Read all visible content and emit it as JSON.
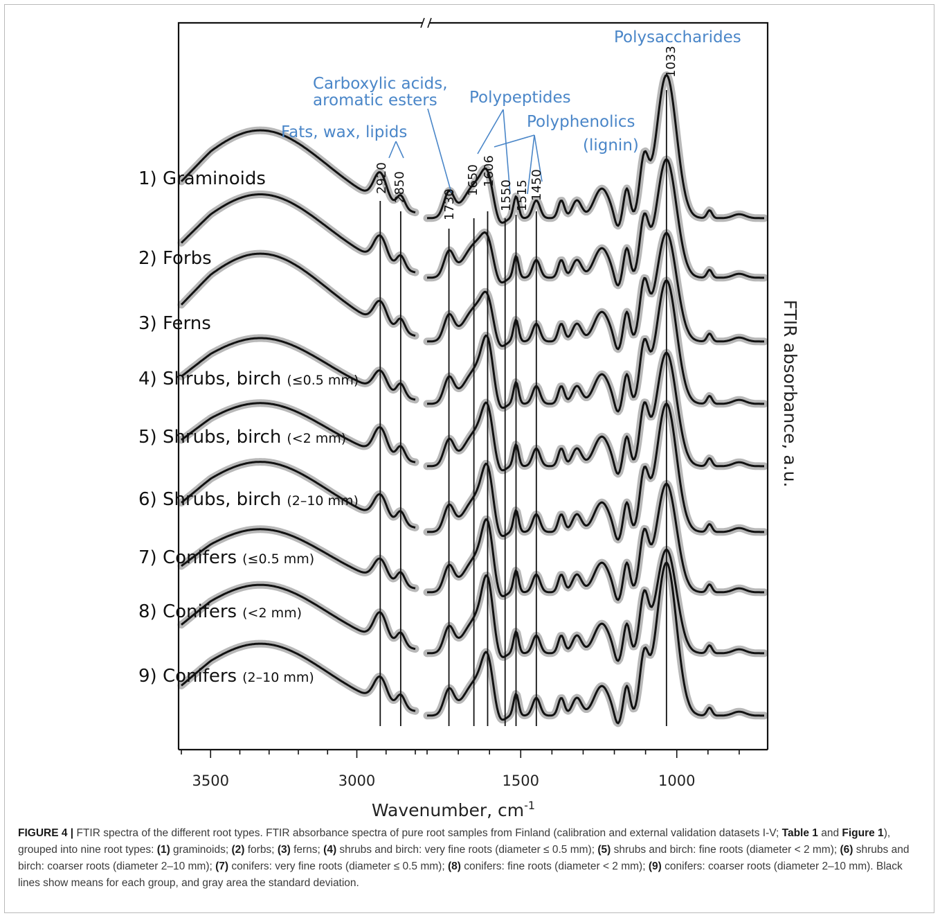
{
  "chart_data": {
    "type": "line",
    "xlabel": "Wavenumber, cm",
    "xlabel_sup": "-1",
    "ylabel": "FTIR absorbance, a.u.",
    "xlim": [
      3600,
      720
    ],
    "axis_break": [
      2800,
      1800
    ],
    "x_ticks": [
      3500,
      3000,
      1500,
      1000
    ],
    "series": [
      {
        "name": "1) Graminoids"
      },
      {
        "name": "2) Forbs"
      },
      {
        "name": "3) Ferns"
      },
      {
        "name": "4) Shrubs, birch",
        "suffix": "(≤0.5 mm)"
      },
      {
        "name": "5) Shrubs, birch",
        "suffix": "(<2 mm)"
      },
      {
        "name": "6) Shrubs, birch",
        "suffix": "(2–10 mm)"
      },
      {
        "name": "7) Conifers",
        "suffix": "(≤0.5 mm)"
      },
      {
        "name": "8) Conifers",
        "suffix": "(<2 mm)"
      },
      {
        "name": "9) Conifers",
        "suffix": "(2–10 mm)"
      }
    ],
    "peaks": [
      "2920",
      "2850",
      "1730",
      "1650",
      "1606",
      "1550",
      "1515",
      "1450",
      "1033"
    ],
    "annotations": [
      {
        "text": "Fats, wax, lipids"
      },
      {
        "text": "Carboxylic acids,"
      },
      {
        "text": "aromatic esters"
      },
      {
        "text": "Polypeptides"
      },
      {
        "text": "Polyphenolics"
      },
      {
        "text": "(lignin)"
      },
      {
        "text": "Polysaccharides"
      }
    ],
    "colors": {
      "mean_line": "#111111",
      "sd_band": "#b8b8b8",
      "annotation": "#4a86c8"
    }
  },
  "caption": {
    "figure_label": "FIGURE 4 |",
    "seg1": " FTIR spectra of the different root types. FTIR absorbance spectra of pure root samples from Finland (calibration and external validation datasets I-V; ",
    "ref1": "Table 1",
    "seg2": " and ",
    "ref2": "Figure 1",
    "seg3": "), grouped into nine root types: ",
    "n1": "(1)",
    "t1": " graminoids; ",
    "n2": "(2)",
    "t2": " forbs; ",
    "n3": "(3)",
    "t3": " ferns; ",
    "n4": "(4)",
    "t4": " shrubs and birch: very fine roots (diameter ≤ 0.5 mm); ",
    "n5": "(5)",
    "t5": " shrubs and birch: fine roots (diameter < 2 mm); ",
    "n6": "(6)",
    "t6": " shrubs and birch: coarser roots (diameter 2–10 mm); ",
    "n7": "(7)",
    "t7": " conifers: very fine roots (diameter ≤ 0.5 mm); ",
    "n8": "(8)",
    "t8": " conifers: fine roots (diameter < 2 mm); ",
    "n9": "(9)",
    "t9": " conifers: coarser roots (diameter 2–10 mm). Black lines show means for each group, and gray area the standard deviation."
  }
}
